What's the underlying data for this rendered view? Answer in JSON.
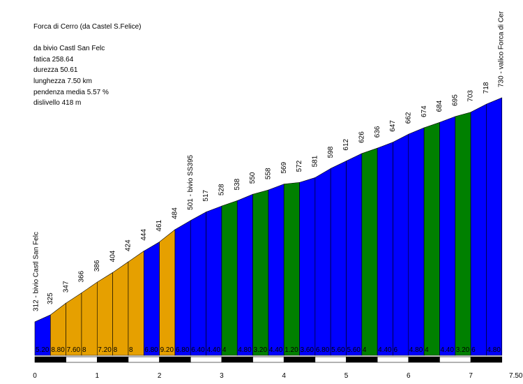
{
  "info": {
    "title": "Forca di Cerro (da Castel S.Felice)",
    "from": "da bivio Castl San Felc",
    "fatica": "fatica 258.64",
    "durezza": "durezza 50.61",
    "lunghezza": "lunghezza 7.50 km",
    "pendenza": "pendenza media 5.57 %",
    "dislivello": "dislivello 418 m"
  },
  "chart_data": {
    "type": "area",
    "title": "Forca di Cerro (da Castel S.Felice)",
    "xlabel": "",
    "ylabel": "",
    "xlim": [
      0,
      7.5
    ],
    "x_ticks": [
      "0",
      "1",
      "2",
      "3",
      "4",
      "5",
      "6",
      "7",
      "7.50"
    ],
    "ylim": [
      250,
      740
    ],
    "grid": false,
    "x": [
      0,
      0.25,
      0.5,
      0.75,
      1,
      1.25,
      1.5,
      1.75,
      2,
      2.25,
      2.5,
      2.75,
      3,
      3.25,
      3.5,
      3.75,
      4,
      4.25,
      4.5,
      4.75,
      5,
      5.25,
      5.5,
      5.75,
      6,
      6.25,
      6.5,
      6.75,
      7,
      7.25,
      7.5
    ],
    "elevations": [
      312,
      325,
      347,
      366,
      386,
      404,
      424,
      444,
      461,
      484,
      501,
      517,
      528,
      538,
      550,
      558,
      569,
      572,
      581,
      598,
      612,
      626,
      636,
      647,
      662,
      674,
      684,
      695,
      703,
      718,
      730
    ],
    "elevation_labels": [
      "312 - bivio Castl San Felc",
      "325",
      "347",
      "366",
      "386",
      "404",
      "424",
      "444",
      "461",
      "484",
      "501 - bivio SS395",
      "517",
      "528",
      "538",
      "550",
      "558",
      "569",
      "572",
      "581",
      "598",
      "612",
      "626",
      "636",
      "647",
      "662",
      "674",
      "684",
      "695",
      "703",
      "718",
      "730 - valico Forca di Cer"
    ],
    "segment_colors": [
      "#0000ff",
      "#e6a000",
      "#e6a000",
      "#e6a000",
      "#e6a000",
      "#e6a000",
      "#e6a000",
      "#0000ff",
      "#e6a000",
      "#0000ff",
      "#0000ff",
      "#0000ff",
      "#008000",
      "#0000ff",
      "#008000",
      "#0000ff",
      "#008000",
      "#0000ff",
      "#0000ff",
      "#0000ff",
      "#0000ff",
      "#008000",
      "#0000ff",
      "#0000ff",
      "#0000ff",
      "#008000",
      "#0000ff",
      "#008000",
      "#0000ff",
      "#0000ff"
    ],
    "gradient_labels": [
      "5.20",
      "8.80",
      "7.60",
      "8",
      "7.20",
      "8",
      "8",
      "6.80",
      "9.20",
      "6.80",
      "6.40",
      "4.40",
      "4",
      "4.80",
      "3.20",
      "4.40",
      "1.20",
      "3.60",
      "6.80",
      "5.60",
      "5.60",
      "4",
      "4.40",
      "6",
      "4.80",
      "4",
      "4.40",
      "3.20",
      "6",
      "4.80"
    ],
    "colors": {
      "easy": "#0000ff",
      "medium": "#008000",
      "hard": "#e6a000"
    }
  }
}
